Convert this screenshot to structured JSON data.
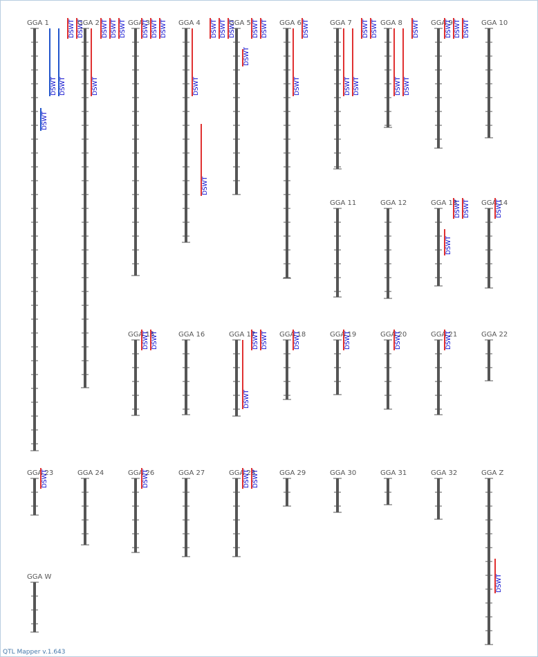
{
  "app": {
    "version_text": "QTL Mapper v.1.643"
  },
  "colors": {
    "chromosome": "#555555",
    "tick": "#555555",
    "qtl_red": "#e03030",
    "qtl_blue": "#2255cc",
    "qtl_text": "#0000cc"
  },
  "chromosomes": [
    {
      "name": "GGA 1",
      "qtls": [
        {
          "label": "DSWT",
          "color": "blue"
        },
        {
          "label": "DSWT",
          "color": "blue"
        },
        {
          "label": "DSWT",
          "color": "blue"
        },
        {
          "label": "DSWT",
          "color": "red"
        },
        {
          "label": "DSWT",
          "color": "red"
        }
      ]
    },
    {
      "name": "GGA 2",
      "qtls": [
        {
          "label": "DSWT",
          "color": "red"
        },
        {
          "label": "DSWT",
          "color": "red"
        },
        {
          "label": "DSWT",
          "color": "red"
        },
        {
          "label": "DSWT",
          "color": "red"
        }
      ]
    },
    {
      "name": "GGA 3",
      "qtls": [
        {
          "label": "DSWT",
          "color": "red"
        },
        {
          "label": "DSWT",
          "color": "red"
        },
        {
          "label": "DSWT",
          "color": "red"
        }
      ]
    },
    {
      "name": "GGA 4",
      "qtls": [
        {
          "label": "DSWT",
          "color": "red"
        },
        {
          "label": "DSWT",
          "color": "red"
        },
        {
          "label": "DSWT",
          "color": "red"
        },
        {
          "label": "DSWT",
          "color": "red"
        },
        {
          "label": "DSWT",
          "color": "red"
        }
      ]
    },
    {
      "name": "GGA 5",
      "qtls": [
        {
          "label": "DSWT",
          "color": "red"
        },
        {
          "label": "DSWT",
          "color": "red"
        },
        {
          "label": "DSWT",
          "color": "red"
        }
      ]
    },
    {
      "name": "GGA 6",
      "qtls": [
        {
          "label": "DSWT",
          "color": "red"
        },
        {
          "label": "DSWT",
          "color": "red"
        }
      ]
    },
    {
      "name": "GGA 7",
      "qtls": [
        {
          "label": "DSWT",
          "color": "red"
        },
        {
          "label": "DSWT",
          "color": "red"
        },
        {
          "label": "DSWT",
          "color": "red"
        },
        {
          "label": "DSWT",
          "color": "red"
        }
      ]
    },
    {
      "name": "GGA 8",
      "qtls": [
        {
          "label": "DSWT",
          "color": "red"
        },
        {
          "label": "DSWT",
          "color": "red"
        },
        {
          "label": "DSWT",
          "color": "red"
        }
      ]
    },
    {
      "name": "GGA 9",
      "qtls": [
        {
          "label": "DSWT",
          "color": "red"
        },
        {
          "label": "DSWT",
          "color": "red"
        },
        {
          "label": "DSWT",
          "color": "red"
        }
      ]
    },
    {
      "name": "GGA 10",
      "qtls": []
    },
    {
      "name": "GGA 11",
      "qtls": []
    },
    {
      "name": "GGA 12",
      "qtls": []
    },
    {
      "name": "GGA 13",
      "qtls": [
        {
          "label": "DSWT",
          "color": "red"
        },
        {
          "label": "DSWT",
          "color": "red"
        },
        {
          "label": "DSWT",
          "color": "red"
        }
      ]
    },
    {
      "name": "GGA 14",
      "qtls": [
        {
          "label": "DSWT",
          "color": "red"
        }
      ]
    },
    {
      "name": "GGA 15",
      "qtls": [
        {
          "label": "DSWT",
          "color": "red"
        },
        {
          "label": "DSWT",
          "color": "red"
        }
      ]
    },
    {
      "name": "GGA 16",
      "qtls": []
    },
    {
      "name": "GGA 17",
      "qtls": [
        {
          "label": "DSWT",
          "color": "red"
        },
        {
          "label": "DSWT",
          "color": "red"
        },
        {
          "label": "DSWT",
          "color": "red"
        }
      ]
    },
    {
      "name": "GGA 18",
      "qtls": [
        {
          "label": "DSWT",
          "color": "red"
        }
      ]
    },
    {
      "name": "GGA 19",
      "qtls": [
        {
          "label": "DSWT",
          "color": "red"
        }
      ]
    },
    {
      "name": "GGA 20",
      "qtls": [
        {
          "label": "DSWT",
          "color": "red"
        }
      ]
    },
    {
      "name": "GGA 21",
      "qtls": [
        {
          "label": "DSWT",
          "color": "red"
        }
      ]
    },
    {
      "name": "GGA 22",
      "qtls": []
    },
    {
      "name": "GGA 23",
      "qtls": [
        {
          "label": "DSWT",
          "color": "red"
        }
      ]
    },
    {
      "name": "GGA 24",
      "qtls": []
    },
    {
      "name": "GGA 26",
      "qtls": [
        {
          "label": "DSWT",
          "color": "red"
        }
      ]
    },
    {
      "name": "GGA 27",
      "qtls": []
    },
    {
      "name": "GGA 28",
      "qtls": [
        {
          "label": "DSWT",
          "color": "red"
        },
        {
          "label": "DSWT",
          "color": "red"
        }
      ]
    },
    {
      "name": "GGA 29",
      "qtls": []
    },
    {
      "name": "GGA 30",
      "qtls": []
    },
    {
      "name": "GGA 31",
      "qtls": []
    },
    {
      "name": "GGA 32",
      "qtls": []
    },
    {
      "name": "GGA Z",
      "qtls": [
        {
          "label": "DSWT",
          "color": "red"
        }
      ]
    },
    {
      "name": "GGA W",
      "qtls": []
    }
  ]
}
